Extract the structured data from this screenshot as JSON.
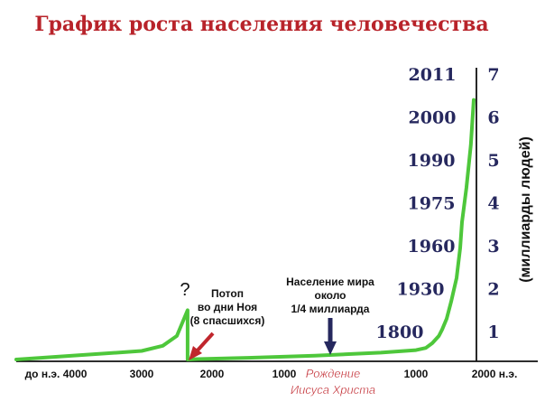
{
  "chart_data": {
    "type": "line",
    "title": "График роста населения человечества",
    "ylabel": "(миллиарды людей)",
    "x_ticks": [
      "до н.э. 4000",
      "3000",
      "2000",
      "1000",
      "1000",
      "2000 н.э."
    ],
    "y_ticks": [
      {
        "value": 1,
        "year": "1800"
      },
      {
        "value": 2,
        "year": "1930"
      },
      {
        "value": 3,
        "year": "1960"
      },
      {
        "value": 4,
        "year": "1975"
      },
      {
        "value": 5,
        "year": "1990"
      },
      {
        "value": 6,
        "year": "2000"
      },
      {
        "value": 7,
        "year": "2011"
      }
    ],
    "series": [
      {
        "color": "#4ec73b",
        "x": [
          -4000,
          -3500,
          -3000,
          -2700,
          -2500,
          -2348,
          -2348,
          -2200,
          -1500,
          -500,
          500,
          1000,
          1300,
          1500,
          1700,
          1800,
          1850,
          1900,
          1930,
          1950,
          1960,
          1975,
          1990,
          2000
        ],
        "y": [
          0.0,
          0.1,
          0.2,
          0.32,
          0.55,
          1.15,
          0.0,
          0.01,
          0.04,
          0.09,
          0.16,
          0.22,
          0.27,
          0.38,
          0.55,
          0.7,
          0.95,
          1.35,
          1.9,
          2.6,
          3.2,
          4.0,
          5.0,
          6.05
        ]
      }
    ],
    "annotations": {
      "question": "?",
      "flood": [
        "Потоп",
        "во дни Ноя",
        "(8 спасшихся)"
      ],
      "population": [
        "Население мира",
        "около",
        "1/4 миллиарда"
      ],
      "christ": [
        "Рождение",
        "Иисуса Христа"
      ]
    },
    "colors": {
      "title": "#b8232a",
      "curve": "#4ec73b",
      "years": "#26285e",
      "flood_arrow": "#c0262d",
      "population_arrow": "#26285e",
      "christ": "#c0262d"
    }
  }
}
